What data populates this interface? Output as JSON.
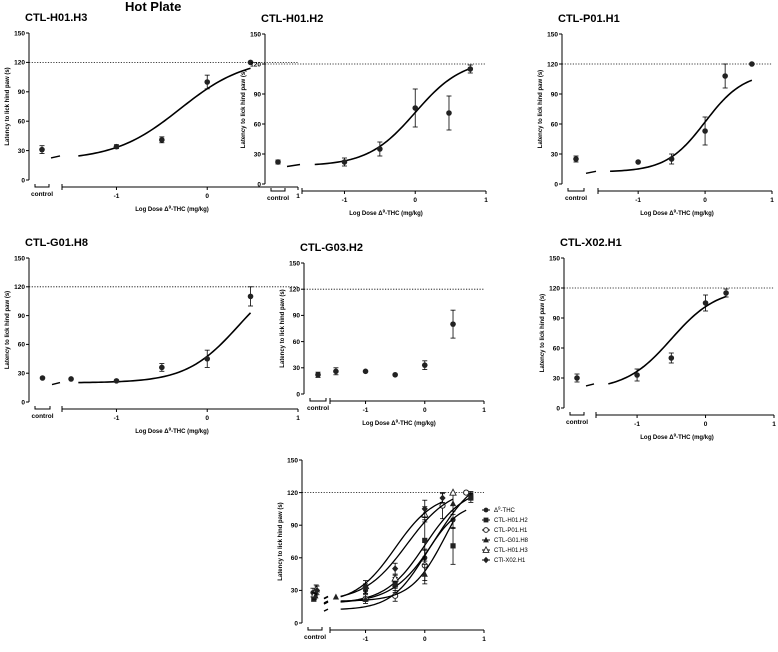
{
  "figure_title": "Hot Plate",
  "chart_data": [
    {
      "type": "scatter",
      "title": "CTL-H01.H3",
      "xlabel": "Log Dose Δ9-THC (mg/kg)",
      "ylabel": "Latency to lick hind paw (s)",
      "xlim": [
        -1.6,
        1
      ],
      "ylim": [
        0,
        150
      ],
      "xticks": [
        -1,
        0,
        1
      ],
      "yticks": [
        0,
        30,
        60,
        90,
        120,
        150
      ],
      "control_label": "control",
      "reference_line_y": 120,
      "control_value": {
        "y": 31,
        "err": 4
      },
      "series": [
        {
          "points": [
            {
              "x": -1,
              "y": 34,
              "err": 2
            },
            {
              "x": -0.5,
              "y": 41,
              "err": 3
            },
            {
              "x": 0,
              "y": 100,
              "err": 7
            },
            {
              "x": 0.477,
              "y": 120,
              "err": 0
            }
          ],
          "fit": {
            "bottom": 20,
            "top": 125,
            "ec50_log": -0.3,
            "hill": 1.2
          }
        }
      ]
    },
    {
      "type": "scatter",
      "title": "CTL-H01.H2",
      "xlabel": "Log Dose Δ9-THC (mg/kg)",
      "ylabel": "Latency to lick hind paw (s)",
      "xlim": [
        -1.6,
        1
      ],
      "ylim": [
        0,
        150
      ],
      "xticks": [
        -1,
        0,
        1
      ],
      "yticks": [
        0,
        30,
        60,
        90,
        120,
        150
      ],
      "control_label": "control",
      "reference_line_y": 120,
      "control_value": {
        "y": 22,
        "err": 2
      },
      "series": [
        {
          "points": [
            {
              "x": -1,
              "y": 22,
              "err": 4
            },
            {
              "x": -0.5,
              "y": 35,
              "err": 7
            },
            {
              "x": 0,
              "y": 76,
              "err": 19
            },
            {
              "x": 0.477,
              "y": 71,
              "err": 17
            },
            {
              "x": 0.778,
              "y": 115,
              "err": 4
            }
          ],
          "fit": {
            "bottom": 18,
            "top": 125,
            "ec50_log": 0.0,
            "hill": 1.3
          }
        }
      ]
    },
    {
      "type": "scatter",
      "title": "CTL-P01.H1",
      "xlabel": "Log Dose Δ9-THC (mg/kg)",
      "ylabel": "Latency to lick hind paw (s)",
      "xlim": [
        -1.6,
        1
      ],
      "ylim": [
        0,
        150
      ],
      "xticks": [
        -1,
        0,
        1
      ],
      "yticks": [
        0,
        30,
        60,
        90,
        120,
        150
      ],
      "control_label": "control",
      "reference_line_y": 120,
      "control_value": {
        "y": 25,
        "err": 3
      },
      "series": [
        {
          "points": [
            {
              "x": -1,
              "y": 22,
              "err": 0
            },
            {
              "x": -0.5,
              "y": 25,
              "err": 5
            },
            {
              "x": 0,
              "y": 53,
              "err": 14
            },
            {
              "x": 0.3,
              "y": 108,
              "err": 12
            },
            {
              "x": 0.699,
              "y": 120,
              "err": 0
            }
          ],
          "fit": {
            "bottom": 12,
            "top": 112,
            "ec50_log": 0.0,
            "hill": 1.5
          }
        }
      ]
    },
    {
      "type": "scatter",
      "title": "CTL-G01.H8",
      "xlabel": "Log Dose Δ9-THC (mg/kg)",
      "ylabel": "Latency to lick hind paw (s)",
      "xlim": [
        -1.6,
        1
      ],
      "ylim": [
        0,
        150
      ],
      "xticks": [
        -1,
        0,
        1
      ],
      "yticks": [
        0,
        30,
        60,
        90,
        120,
        150
      ],
      "control_label": "control",
      "reference_line_y": 120,
      "control_value": {
        "y": 25,
        "err": 0
      },
      "series": [
        {
          "points": [
            {
              "x": -1.5,
              "y": 24,
              "err": 0
            },
            {
              "x": -1,
              "y": 22,
              "err": 0
            },
            {
              "x": -0.5,
              "y": 36,
              "err": 4
            },
            {
              "x": 0,
              "y": 45,
              "err": 9
            },
            {
              "x": 0.477,
              "y": 110,
              "err": 10
            }
          ],
          "fit": {
            "bottom": 20,
            "top": 140,
            "ec50_log": 0.35,
            "hill": 1.5
          }
        }
      ]
    },
    {
      "type": "scatter",
      "title": "CTL-G03.H2",
      "xlabel": "Log Dose Δ9-THC (mg/kg)",
      "ylabel": "Latency to lick hind paw (s)",
      "xlim": [
        -1.6,
        1
      ],
      "ylim": [
        0,
        150
      ],
      "xticks": [
        -1,
        0,
        1
      ],
      "yticks": [
        0,
        30,
        60,
        90,
        120,
        150
      ],
      "control_label": "control",
      "reference_line_y": 120,
      "control_value": {
        "y": 22,
        "err": 3
      },
      "series": [
        {
          "points": [
            {
              "x": -1.5,
              "y": 26,
              "err": 4
            },
            {
              "x": -1,
              "y": 26,
              "err": 0
            },
            {
              "x": -0.5,
              "y": 22,
              "err": 0
            },
            {
              "x": 0,
              "y": 33,
              "err": 5
            },
            {
              "x": 0.477,
              "y": 80,
              "err": 16
            }
          ],
          "fit": null
        }
      ]
    },
    {
      "type": "scatter",
      "title": "CTL-X02.H1",
      "xlabel": "Log Dose Δ9-THC (mg/kg)",
      "ylabel": "Latency to lick hind paw (s)",
      "xlim": [
        -1.6,
        1
      ],
      "ylim": [
        0,
        150
      ],
      "xticks": [
        -1,
        0,
        1
      ],
      "yticks": [
        0,
        30,
        60,
        90,
        120,
        150
      ],
      "control_label": "control",
      "reference_line_y": 120,
      "control_value": {
        "y": 30,
        "err": 4
      },
      "series": [
        {
          "points": [
            {
              "x": -1,
              "y": 33,
              "err": 6
            },
            {
              "x": -0.5,
              "y": 50,
              "err": 5
            },
            {
              "x": 0,
              "y": 105,
              "err": 8
            },
            {
              "x": 0.3,
              "y": 115,
              "err": 4
            }
          ],
          "fit": {
            "bottom": 18,
            "top": 120,
            "ec50_log": -0.5,
            "hill": 1.3
          }
        }
      ]
    },
    {
      "type": "scatter",
      "title": "",
      "xlabel": "Log Dose Δ9-THC (mg/kg)",
      "ylabel": "Latency to lick hind paw (s)",
      "xlim": [
        -1.6,
        1
      ],
      "ylim": [
        0,
        150
      ],
      "xticks": [
        -1,
        0,
        1
      ],
      "yticks": [
        0,
        30,
        60,
        90,
        120,
        150
      ],
      "control_label": "control",
      "reference_line_y": 120,
      "legend_position": "right",
      "series": [
        {
          "name": "Δ9-THC",
          "marker": "circle",
          "control": {
            "y": 28,
            "err": 4
          },
          "points": [
            {
              "x": -1,
              "y": 30,
              "err": 3
            },
            {
              "x": -0.5,
              "y": 38,
              "err": 4
            },
            {
              "x": 0,
              "y": 60,
              "err": 8
            },
            {
              "x": 0.477,
              "y": 95,
              "err": 8
            },
            {
              "x": 0.778,
              "y": 118,
              "err": 3
            }
          ],
          "fit": {
            "bottom": 18,
            "top": 140,
            "ec50_log": 0.2,
            "hill": 1.2
          }
        },
        {
          "name": "CTL-H01.H2",
          "marker": "square",
          "control": {
            "y": 22,
            "err": 2
          },
          "points": [
            {
              "x": -1,
              "y": 22,
              "err": 4
            },
            {
              "x": -0.5,
              "y": 35,
              "err": 7
            },
            {
              "x": 0,
              "y": 76,
              "err": 19
            },
            {
              "x": 0.477,
              "y": 71,
              "err": 17
            },
            {
              "x": 0.778,
              "y": 115,
              "err": 4
            }
          ],
          "fit": {
            "bottom": 18,
            "top": 125,
            "ec50_log": 0.0,
            "hill": 1.3
          }
        },
        {
          "name": "CTL-P01.H1",
          "marker": "circle-open",
          "control": {
            "y": 25,
            "err": 3
          },
          "points": [
            {
              "x": -1,
              "y": 22,
              "err": 0
            },
            {
              "x": -0.5,
              "y": 25,
              "err": 5
            },
            {
              "x": 0,
              "y": 53,
              "err": 14
            },
            {
              "x": 0.3,
              "y": 108,
              "err": 12
            },
            {
              "x": 0.699,
              "y": 120,
              "err": 0
            }
          ],
          "fit": {
            "bottom": 12,
            "top": 112,
            "ec50_log": 0.0,
            "hill": 1.5
          }
        },
        {
          "name": "CTL-G01.H8",
          "marker": "triangle",
          "control": {
            "y": 25,
            "err": 0
          },
          "points": [
            {
              "x": -1.5,
              "y": 24,
              "err": 0
            },
            {
              "x": -1,
              "y": 22,
              "err": 0
            },
            {
              "x": -0.5,
              "y": 36,
              "err": 4
            },
            {
              "x": 0,
              "y": 45,
              "err": 9
            },
            {
              "x": 0.477,
              "y": 110,
              "err": 10
            }
          ],
          "fit": {
            "bottom": 20,
            "top": 140,
            "ec50_log": 0.35,
            "hill": 1.5
          }
        },
        {
          "name": "CTL-H01.H3",
          "marker": "triangle-open",
          "control": {
            "y": 31,
            "err": 4
          },
          "points": [
            {
              "x": -1,
              "y": 34,
              "err": 2
            },
            {
              "x": -0.5,
              "y": 41,
              "err": 3
            },
            {
              "x": 0,
              "y": 100,
              "err": 7
            },
            {
              "x": 0.477,
              "y": 120,
              "err": 0
            }
          ],
          "fit": {
            "bottom": 20,
            "top": 125,
            "ec50_log": -0.3,
            "hill": 1.2
          }
        },
        {
          "name": "CTl-X02.H1",
          "marker": "diamond",
          "control": {
            "y": 30,
            "err": 4
          },
          "points": [
            {
              "x": -1,
              "y": 33,
              "err": 6
            },
            {
              "x": -0.5,
              "y": 50,
              "err": 5
            },
            {
              "x": 0,
              "y": 105,
              "err": 8
            },
            {
              "x": 0.3,
              "y": 115,
              "err": 4
            }
          ],
          "fit": {
            "bottom": 18,
            "top": 120,
            "ec50_log": -0.5,
            "hill": 1.3
          }
        }
      ]
    }
  ]
}
